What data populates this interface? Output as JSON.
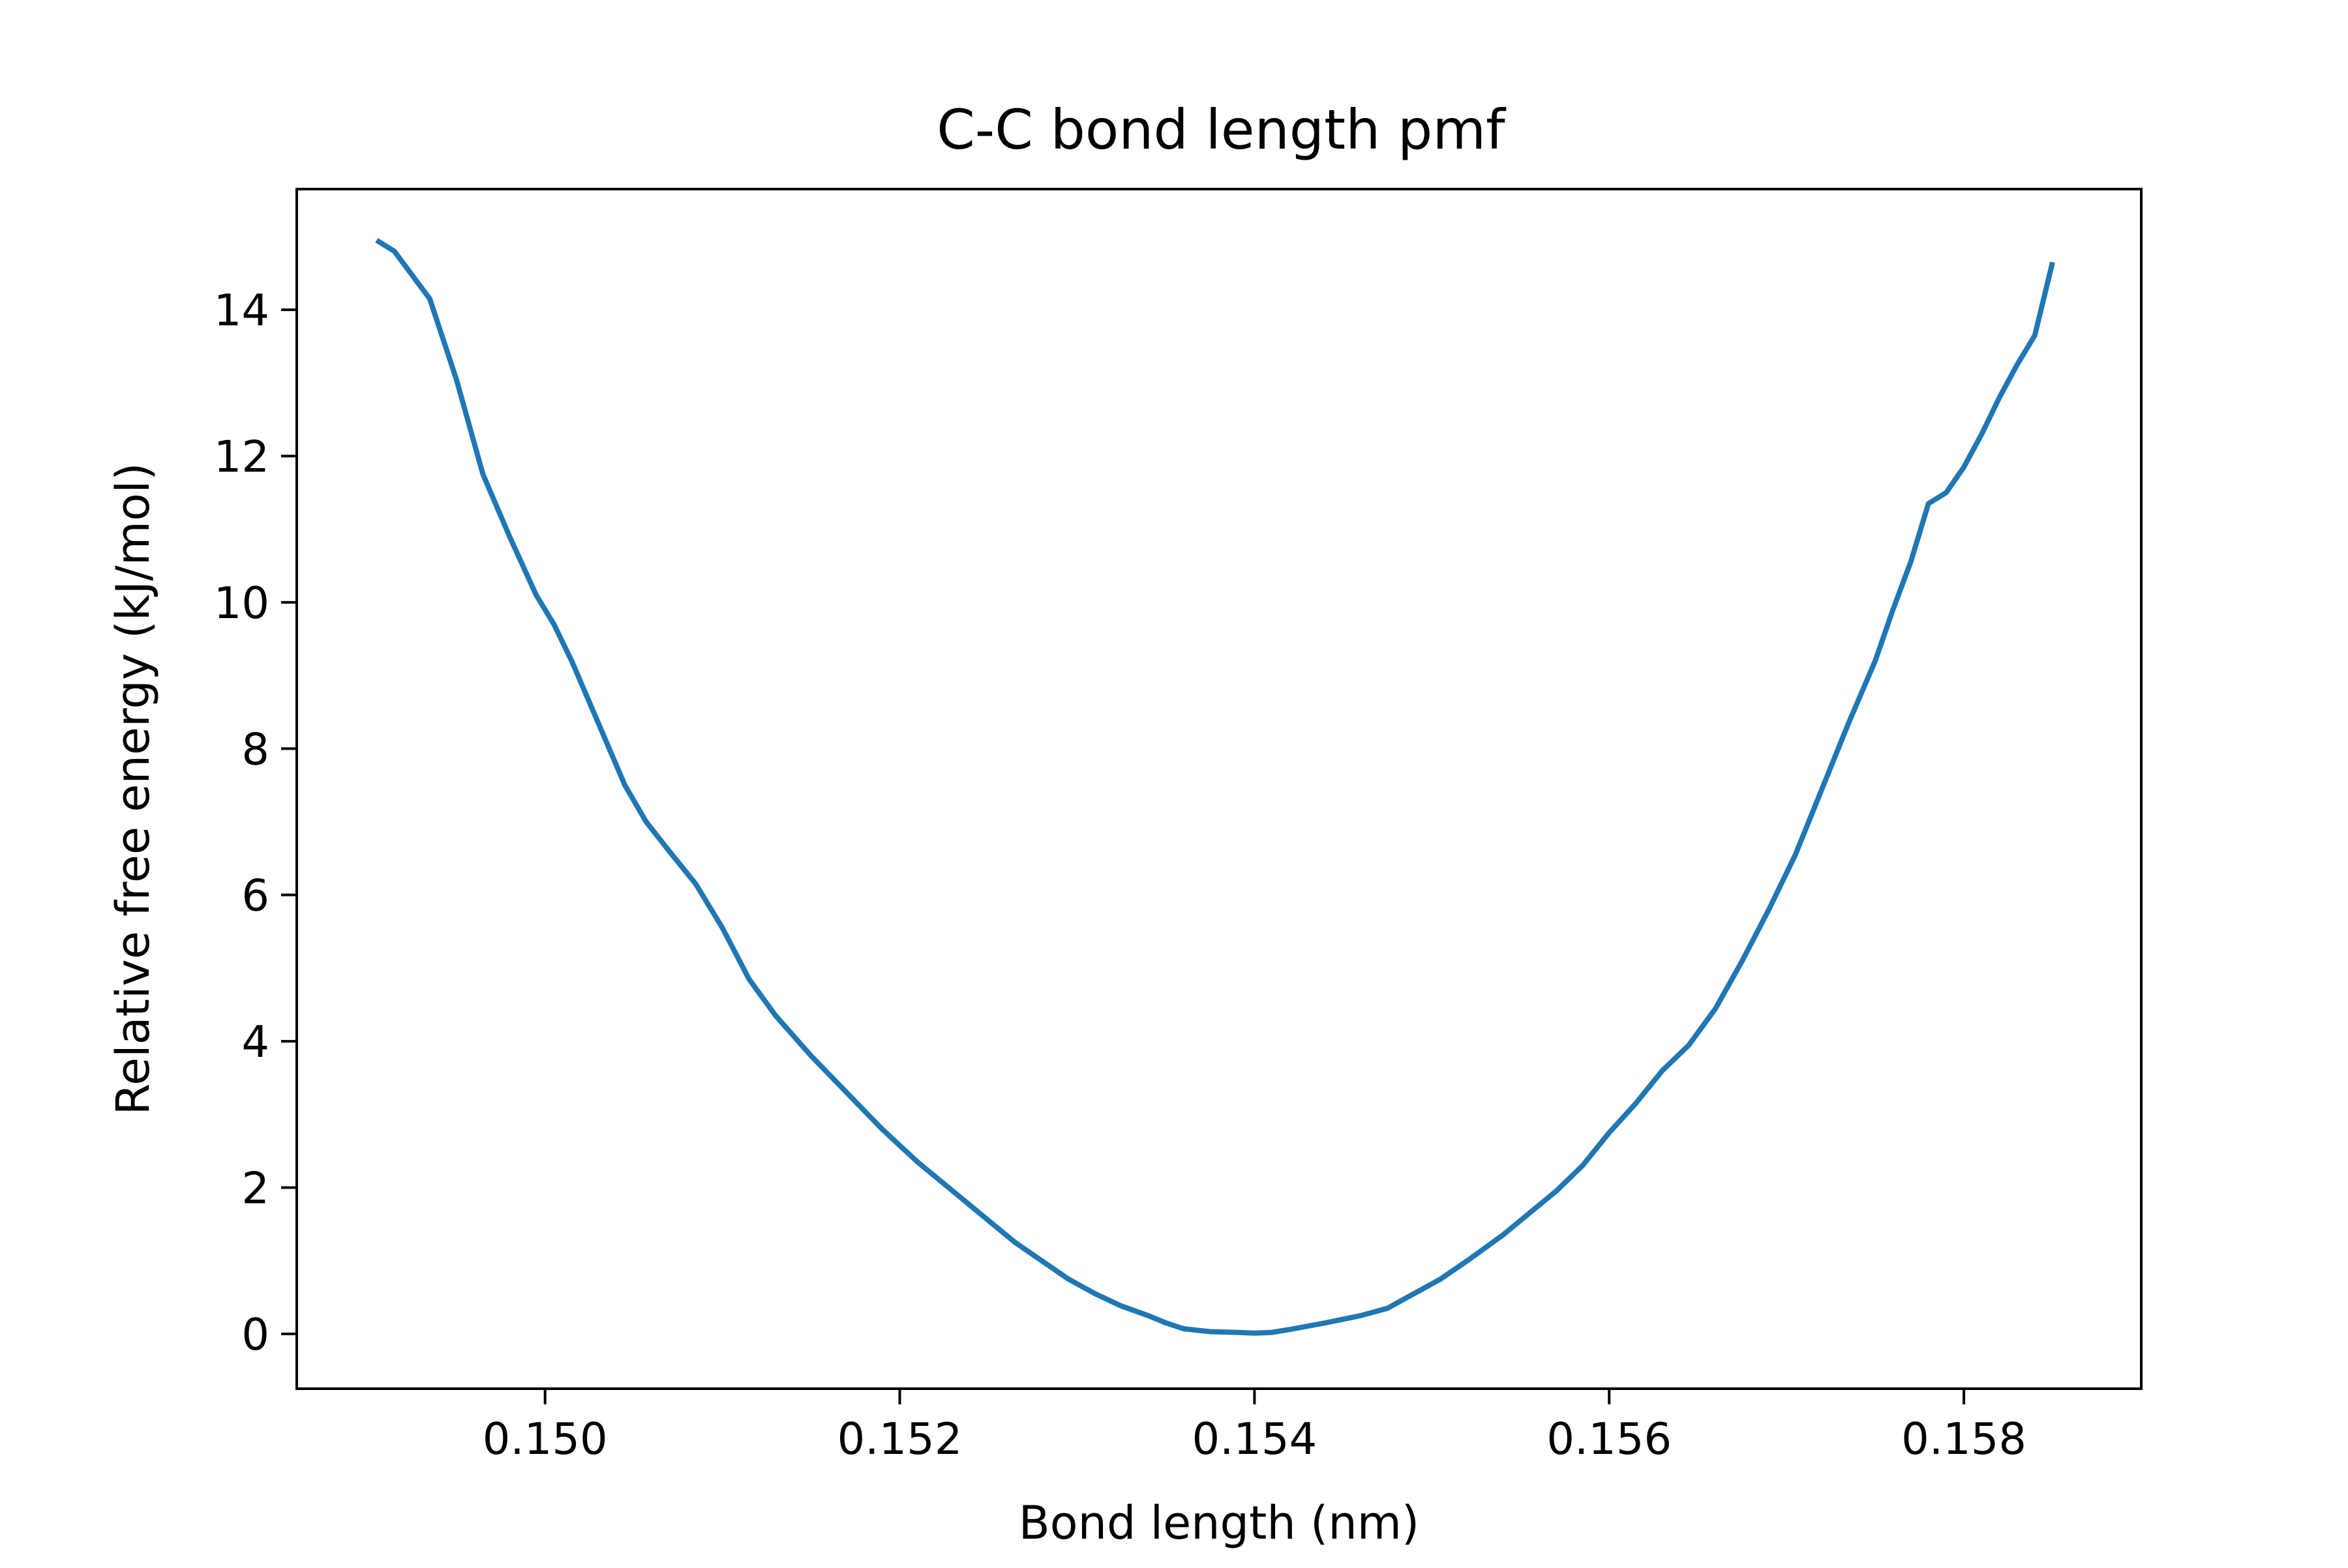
{
  "chart_data": {
    "type": "line",
    "title": "C-C bond length pmf",
    "xlabel": "Bond length (nm)",
    "ylabel": "Relative free energy (kJ/mol)",
    "xlim": [
      0.1486,
      0.159
    ],
    "ylim": [
      -0.75,
      15.65
    ],
    "grid": false,
    "legend": "none",
    "line_color": "#1f77b4",
    "xticks": [
      0.15,
      0.152,
      0.154,
      0.156,
      0.158
    ],
    "xtick_labels": [
      "0.150",
      "0.152",
      "0.154",
      "0.156",
      "0.158"
    ],
    "yticks": [
      0,
      2,
      4,
      6,
      8,
      10,
      12,
      14
    ],
    "ytick_labels": [
      "0",
      "2",
      "4",
      "6",
      "8",
      "10",
      "12",
      "14"
    ],
    "series": [
      {
        "x": [
          0.14905,
          0.14915,
          0.14935,
          0.1495,
          0.14965,
          0.1498,
          0.14995,
          0.15005,
          0.15015,
          0.1503,
          0.15045,
          0.15057,
          0.1507,
          0.15085,
          0.151,
          0.15115,
          0.1513,
          0.1515,
          0.1517,
          0.1519,
          0.1521,
          0.1523,
          0.1525,
          0.15265,
          0.1528,
          0.15295,
          0.1531,
          0.15325,
          0.1534,
          0.1535,
          0.1536,
          0.15375,
          0.1539,
          0.154,
          0.1541,
          0.1542,
          0.1544,
          0.1545,
          0.1546,
          0.15475,
          0.1549,
          0.15505,
          0.1552,
          0.1554,
          0.15555,
          0.1557,
          0.15585,
          0.156,
          0.15615,
          0.1563,
          0.15645,
          0.1566,
          0.15675,
          0.1569,
          0.15705,
          0.1572,
          0.15735,
          0.1575,
          0.1576,
          0.1577,
          0.1578,
          0.1579,
          0.158,
          0.1581,
          0.1582,
          0.1583,
          0.1584,
          0.1585
        ],
        "y": [
          14.95,
          14.8,
          14.15,
          13.05,
          11.75,
          10.9,
          10.1,
          9.7,
          9.2,
          8.35,
          7.5,
          7.0,
          6.6,
          6.15,
          5.55,
          4.85,
          4.35,
          3.8,
          3.3,
          2.8,
          2.35,
          1.95,
          1.55,
          1.25,
          1.0,
          0.75,
          0.55,
          0.38,
          0.25,
          0.15,
          0.07,
          0.03,
          0.02,
          0.01,
          0.02,
          0.06,
          0.15,
          0.2,
          0.25,
          0.35,
          0.55,
          0.75,
          1.0,
          1.35,
          1.65,
          1.95,
          2.3,
          2.75,
          3.15,
          3.6,
          3.95,
          4.45,
          5.1,
          5.8,
          6.55,
          7.45,
          8.35,
          9.2,
          9.9,
          10.55,
          11.35,
          11.5,
          11.85,
          12.3,
          12.8,
          13.25,
          13.65,
          14.65
        ]
      }
    ]
  }
}
